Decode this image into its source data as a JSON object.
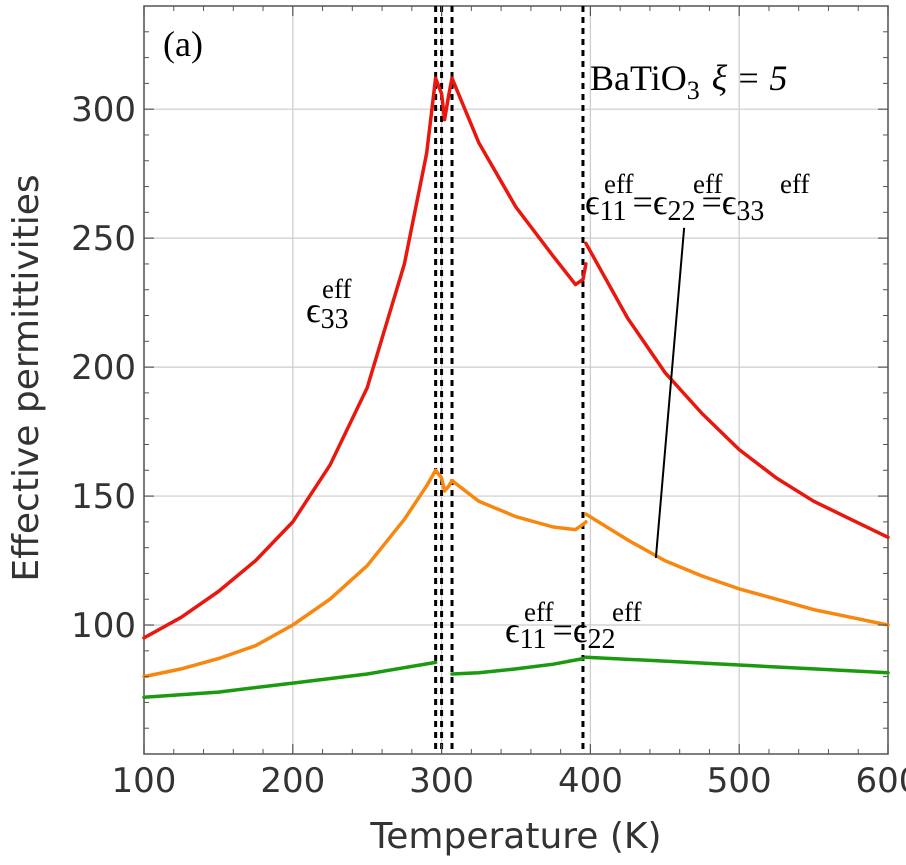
{
  "chart_data": {
    "type": "line",
    "panel_label": "(a)",
    "material": {
      "base": "BaTiO",
      "sub": "3",
      "param": "ξ = 5"
    },
    "xlabel": "Temperature  (K)",
    "ylabel": "Effective  permittivities",
    "xlim": [
      100,
      600
    ],
    "ylim": [
      50,
      340
    ],
    "xticks": [
      100,
      200,
      300,
      400,
      500,
      600
    ],
    "yticks": [
      100,
      150,
      200,
      250,
      300
    ],
    "grid": true,
    "transition_lines": [
      296,
      300,
      307,
      395
    ],
    "series": [
      {
        "color": "#e8180f",
        "segments": [
          [
            [
              100,
              95
            ],
            [
              125,
              103
            ],
            [
              150,
              113
            ],
            [
              175,
              125
            ],
            [
              200,
              140
            ],
            [
              225,
              162
            ],
            [
              250,
              192
            ],
            [
              275,
              240
            ],
            [
              290,
              283
            ],
            [
              296,
              312
            ]
          ],
          [
            [
              296,
              312
            ],
            [
              300,
              306
            ],
            [
              302,
              296
            ]
          ],
          [
            [
              302,
              296
            ],
            [
              305,
              306
            ],
            [
              307,
              312
            ]
          ],
          [
            [
              307,
              312
            ],
            [
              325,
              287
            ],
            [
              350,
              262
            ],
            [
              375,
              243
            ],
            [
              390,
              232
            ],
            [
              395,
              234
            ],
            [
              397,
              240
            ]
          ],
          [
            [
              397,
              248
            ],
            [
              425,
              219
            ],
            [
              450,
              198
            ],
            [
              475,
              182
            ],
            [
              500,
              168
            ],
            [
              525,
              157
            ],
            [
              550,
              148
            ],
            [
              575,
              141
            ],
            [
              600,
              134
            ]
          ]
        ]
      },
      {
        "color": "#f7870f",
        "segments": [
          [
            [
              100,
              80
            ],
            [
              125,
              83
            ],
            [
              150,
              87
            ],
            [
              175,
              92
            ],
            [
              200,
              100
            ],
            [
              225,
              110
            ],
            [
              250,
              123
            ],
            [
              275,
              141
            ],
            [
              290,
              154
            ],
            [
              296,
              160
            ]
          ],
          [
            [
              296,
              160
            ],
            [
              300,
              157
            ],
            [
              302,
              152
            ]
          ],
          [
            [
              302,
              152
            ],
            [
              305,
              154
            ],
            [
              307,
              156
            ]
          ],
          [
            [
              307,
              156
            ],
            [
              325,
              148
            ],
            [
              350,
              142
            ],
            [
              375,
              138
            ],
            [
              390,
              137
            ],
            [
              395,
              139
            ],
            [
              397,
              140
            ]
          ],
          [
            [
              397,
              143
            ],
            [
              425,
              133
            ],
            [
              450,
              125
            ],
            [
              475,
              119
            ],
            [
              500,
              114
            ],
            [
              525,
              110
            ],
            [
              550,
              106
            ],
            [
              575,
              103
            ],
            [
              600,
              100
            ]
          ]
        ]
      },
      {
        "color": "#1b9a10",
        "segments": [
          [
            [
              100,
              72
            ],
            [
              150,
              74
            ],
            [
              200,
              77.5
            ],
            [
              250,
              81
            ],
            [
              296,
              85.5
            ]
          ],
          [
            [
              307,
              81
            ],
            [
              325,
              81.5
            ],
            [
              350,
              83
            ],
            [
              375,
              84.8
            ],
            [
              395,
              87
            ]
          ],
          [
            [
              397,
              87.5
            ],
            [
              450,
              86
            ],
            [
              500,
              84.5
            ],
            [
              550,
              83
            ],
            [
              600,
              81.5
            ]
          ]
        ]
      }
    ],
    "annotations": [
      {
        "id": "eps33",
        "symbol": "ϵ",
        "sub": "33",
        "sup": "eff"
      },
      {
        "id": "eps-all",
        "parts": [
          [
            "11",
            "eff"
          ],
          [
            "22",
            "eff"
          ],
          [
            "33",
            "eff"
          ]
        ],
        "joiner": "="
      },
      {
        "id": "eps-12",
        "parts": [
          [
            "11",
            "eff"
          ],
          [
            "22",
            "eff"
          ]
        ],
        "joiner": "="
      }
    ],
    "pointer": {
      "from": [
        444,
        126
      ],
      "to": [
        463,
        254
      ]
    }
  }
}
